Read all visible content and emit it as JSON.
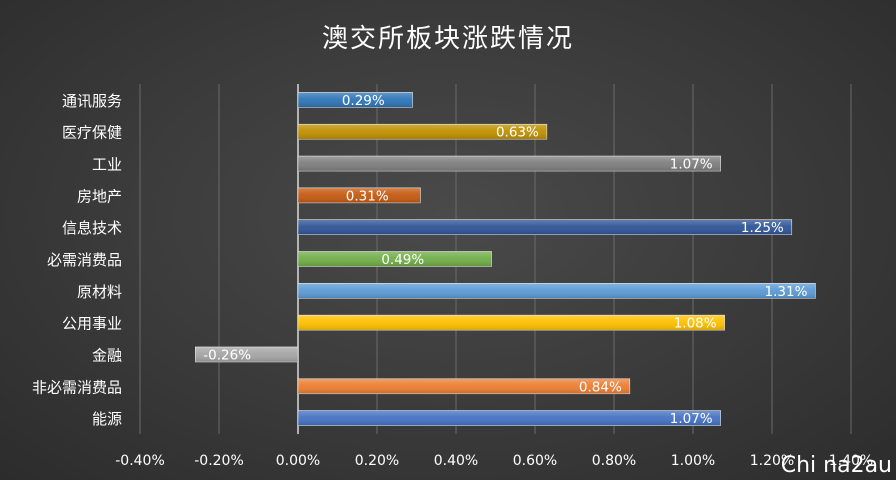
{
  "chart_data": {
    "type": "bar",
    "orientation": "horizontal",
    "title": "澳交所板块涨跌情况",
    "categories": [
      "通讯服务",
      "医疗保健",
      "工业",
      "房地产",
      "信息技术",
      "必需消费品",
      "原材料",
      "公用事业",
      "金融",
      "非必需消费品",
      "能源"
    ],
    "values": [
      0.29,
      0.63,
      1.07,
      0.31,
      1.25,
      0.49,
      1.31,
      1.08,
      -0.26,
      0.84,
      1.07
    ],
    "data_labels": [
      "0.29%",
      "0.63%",
      "1.07%",
      "0.31%",
      "1.25%",
      "0.49%",
      "1.31%",
      "1.08%",
      "-0.26%",
      "0.84%",
      "1.07%"
    ],
    "colors": [
      "#2e75b6",
      "#bf9000",
      "#7f7f7f",
      "#c55a11",
      "#2f5597",
      "#70ad47",
      "#5b9bd5",
      "#ffc000",
      "#a5a5a5",
      "#ed7d31",
      "#4472c4"
    ],
    "xlim": [
      -0.4,
      1.4
    ],
    "x_ticks": [
      -0.4,
      -0.2,
      0.0,
      0.2,
      0.4,
      0.6,
      0.8,
      1.0,
      1.2,
      1.4
    ],
    "x_tick_labels": [
      "-0.40%",
      "-0.20%",
      "0.00%",
      "0.20%",
      "0.40%",
      "0.60%",
      "0.80%",
      "1.00%",
      "1.20%",
      "1.40%"
    ],
    "grid": true,
    "xlabel": "",
    "ylabel": ""
  },
  "watermark": "Chi na2au"
}
